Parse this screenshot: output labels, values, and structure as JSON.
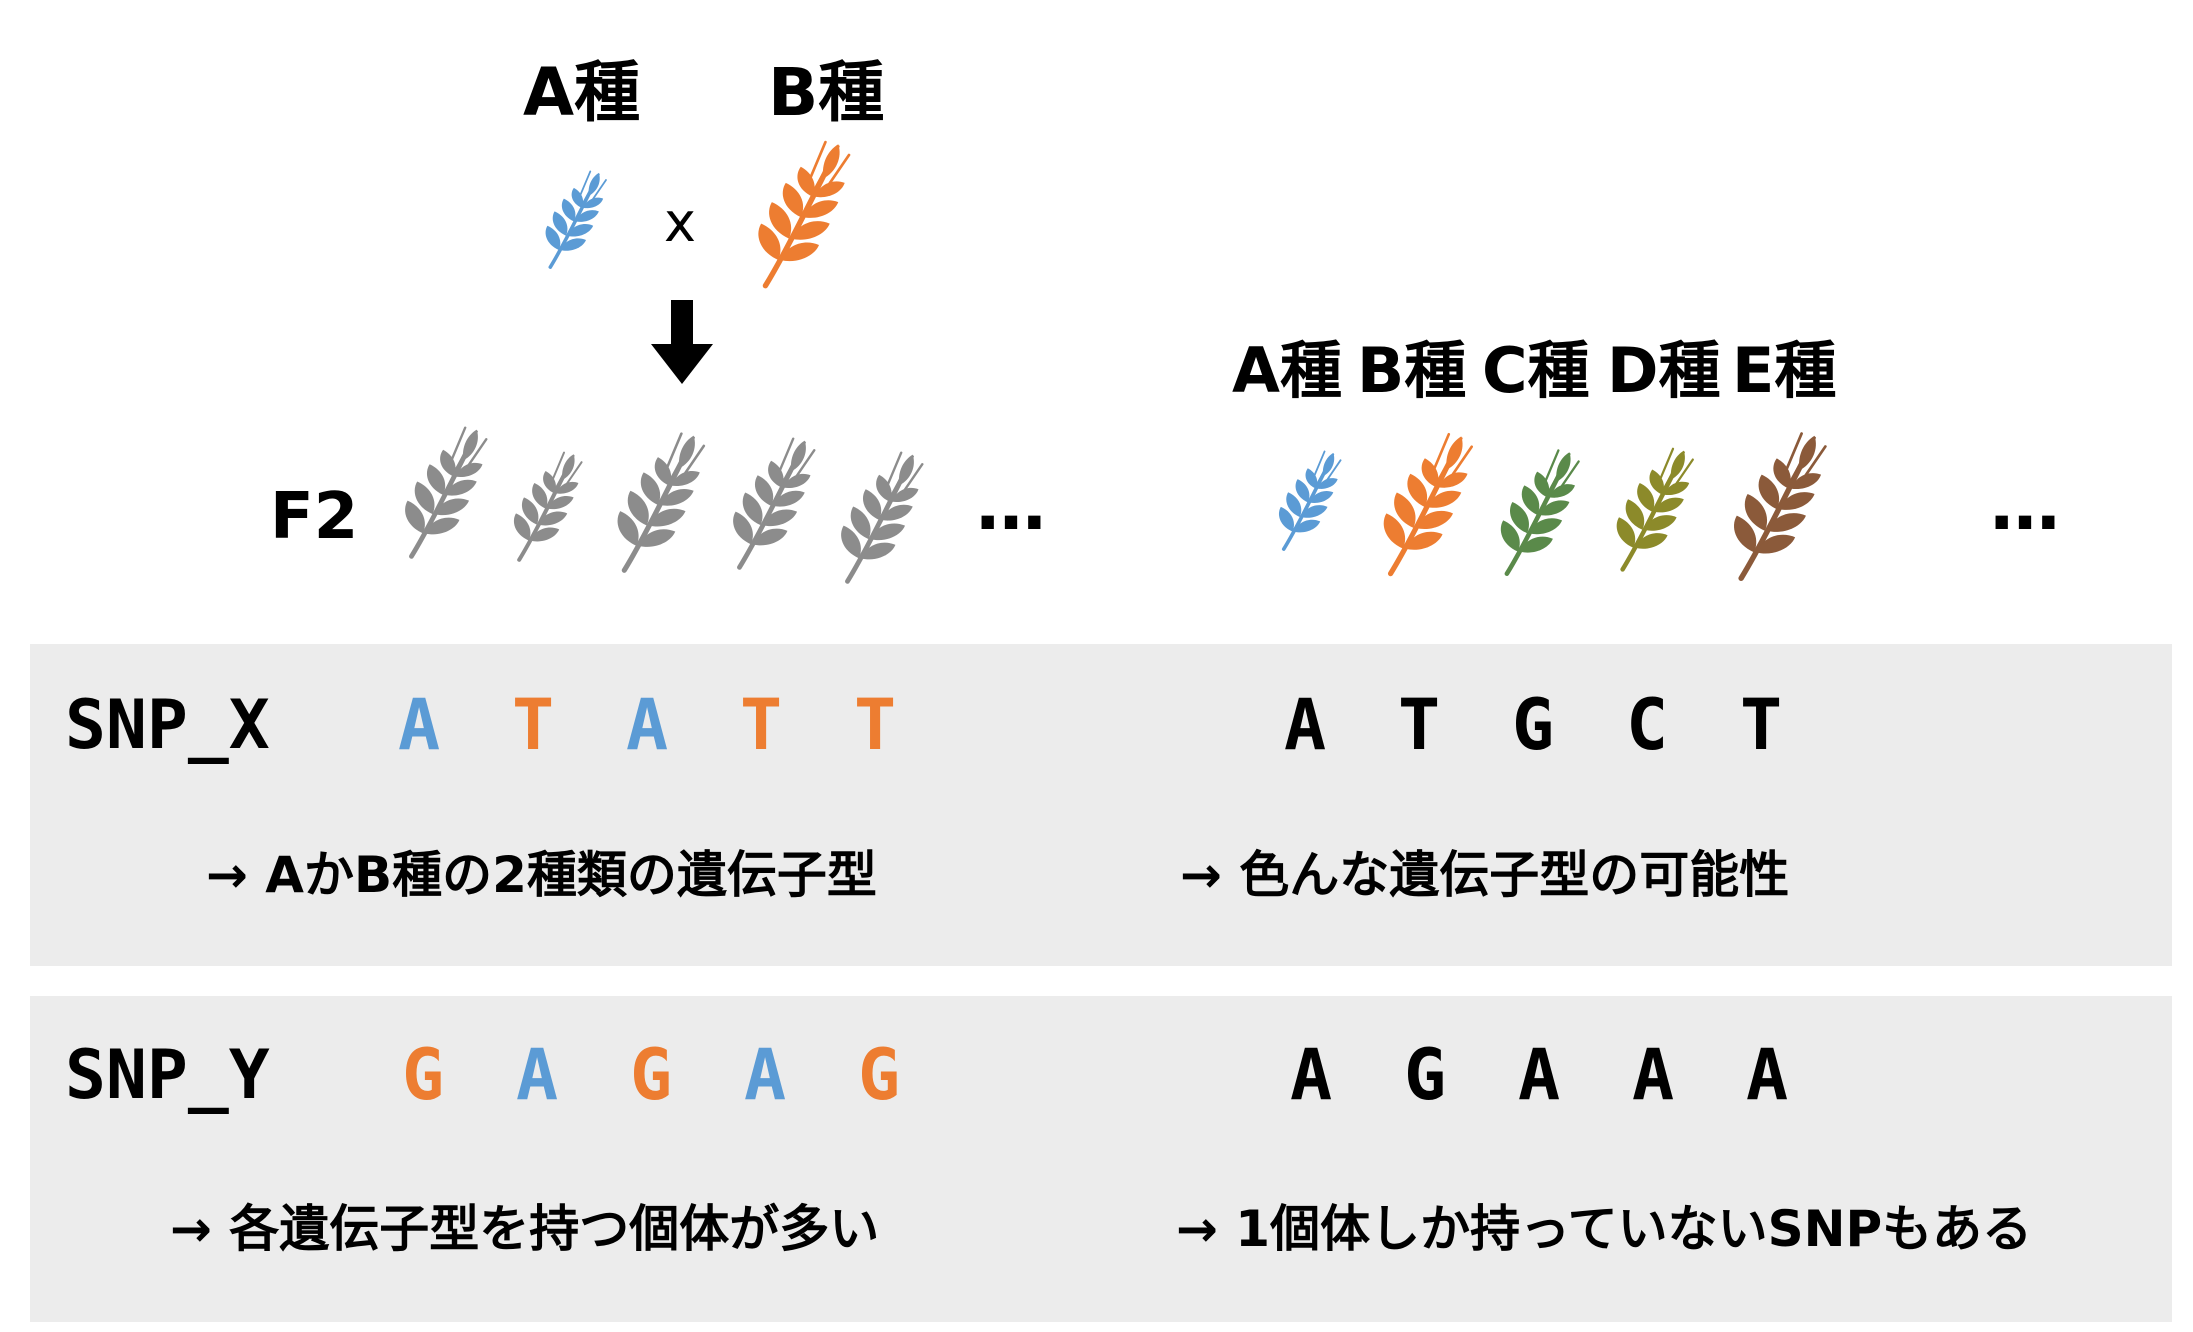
{
  "colors": {
    "blue": "#5b9bd5",
    "orange": "#ed7d31",
    "gray": "#8c8c8c",
    "green": "#5a8a4a",
    "olive": "#8c8a2a",
    "brown": "#8b5a3a",
    "panel": "#ececec"
  },
  "cross": {
    "parent_a_label": "A種",
    "parent_b_label": "B種",
    "cross_symbol": "x",
    "arrow_icon": "down-arrow-icon",
    "f2_label": "F2",
    "f2_more": "…"
  },
  "population": {
    "species": [
      "A種",
      "B種",
      "C種",
      "D種",
      "E種"
    ],
    "more": "…"
  },
  "snp_x": {
    "label": "SNP_X",
    "f2_bases": [
      "A",
      "T",
      "A",
      "T",
      "T"
    ],
    "f2_base_colors": [
      "blue",
      "orange",
      "blue",
      "orange",
      "orange"
    ],
    "population_bases": [
      "A",
      "T",
      "G",
      "C",
      "T"
    ],
    "f2_note": "→ AかB種の2種類の遺伝子型",
    "population_note": "→ 色んな遺伝子型の可能性"
  },
  "snp_y": {
    "label": "SNP_Y",
    "f2_bases": [
      "G",
      "A",
      "G",
      "A",
      "G"
    ],
    "f2_base_colors": [
      "orange",
      "blue",
      "orange",
      "blue",
      "orange"
    ],
    "population_bases": [
      "A",
      "G",
      "A",
      "A",
      "A"
    ],
    "f2_note": "→ 各遺伝子型を持つ個体が多い",
    "population_note": "→ 1個体しか持っていないSNPもある"
  }
}
